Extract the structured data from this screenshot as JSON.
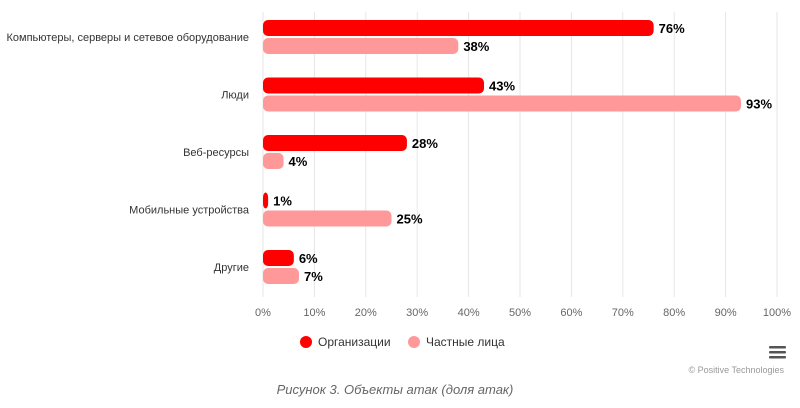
{
  "chart_data": {
    "type": "bar",
    "orientation": "horizontal",
    "categories": [
      "Компьютеры, серверы и сетевое оборудование",
      "Люди",
      "Веб-ресурсы",
      "Мобильные устройства",
      "Другие"
    ],
    "series": [
      {
        "name": "Организации",
        "color": "#ff0000",
        "values": [
          76,
          43,
          28,
          1,
          6
        ]
      },
      {
        "name": "Частные лица",
        "color": "#ff9999",
        "values": [
          38,
          93,
          4,
          25,
          7
        ]
      }
    ],
    "value_suffix": "%",
    "xlim": [
      0,
      100
    ],
    "xticks": [
      0,
      10,
      20,
      30,
      40,
      50,
      60,
      70,
      80,
      90,
      100
    ],
    "xtick_labels": [
      "0%",
      "10%",
      "20%",
      "30%",
      "40%",
      "50%",
      "60%",
      "70%",
      "80%",
      "90%",
      "100%"
    ],
    "grid": "vertical",
    "legend_position": "bottom-center"
  },
  "credit": "© Positive Technologies",
  "caption": "Рисунок 3. Объекты атак (доля атак)",
  "menu_icon": "hamburger-menu-icon"
}
